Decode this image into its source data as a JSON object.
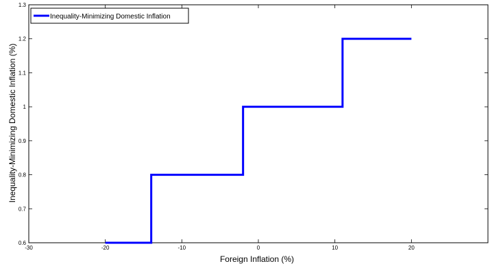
{
  "chart_data": {
    "type": "line",
    "title": "",
    "xlabel": "Foreign Inflation (%)",
    "ylabel": "Inequality-Minimizing Domestic Inflation (%)",
    "xlim": [
      -30,
      30
    ],
    "ylim": [
      0.6,
      1.3
    ],
    "xticks": [
      -30,
      -20,
      -10,
      0,
      10,
      20
    ],
    "yticks": [
      0.6,
      0.7,
      0.8,
      0.9,
      1.0,
      1.1,
      1.2,
      1.3
    ],
    "xtick_labels": [
      "-30",
      "-20",
      "-10",
      "0",
      "10",
      "20"
    ],
    "ytick_labels": [
      "0.6",
      "0.7",
      "0.8",
      "0.9",
      "1",
      "1.1",
      "1.2",
      "1.3"
    ],
    "grid": false,
    "legend_position": "top-left",
    "series": [
      {
        "name": "Inequality-Minimizing Domestic Inflation",
        "color": "#0000ff",
        "x": [
          -20,
          -14,
          -14,
          -2,
          -2,
          11,
          11,
          20
        ],
        "y": [
          0.6,
          0.6,
          0.8,
          0.8,
          1.0,
          1.0,
          1.2,
          1.2
        ]
      }
    ]
  }
}
